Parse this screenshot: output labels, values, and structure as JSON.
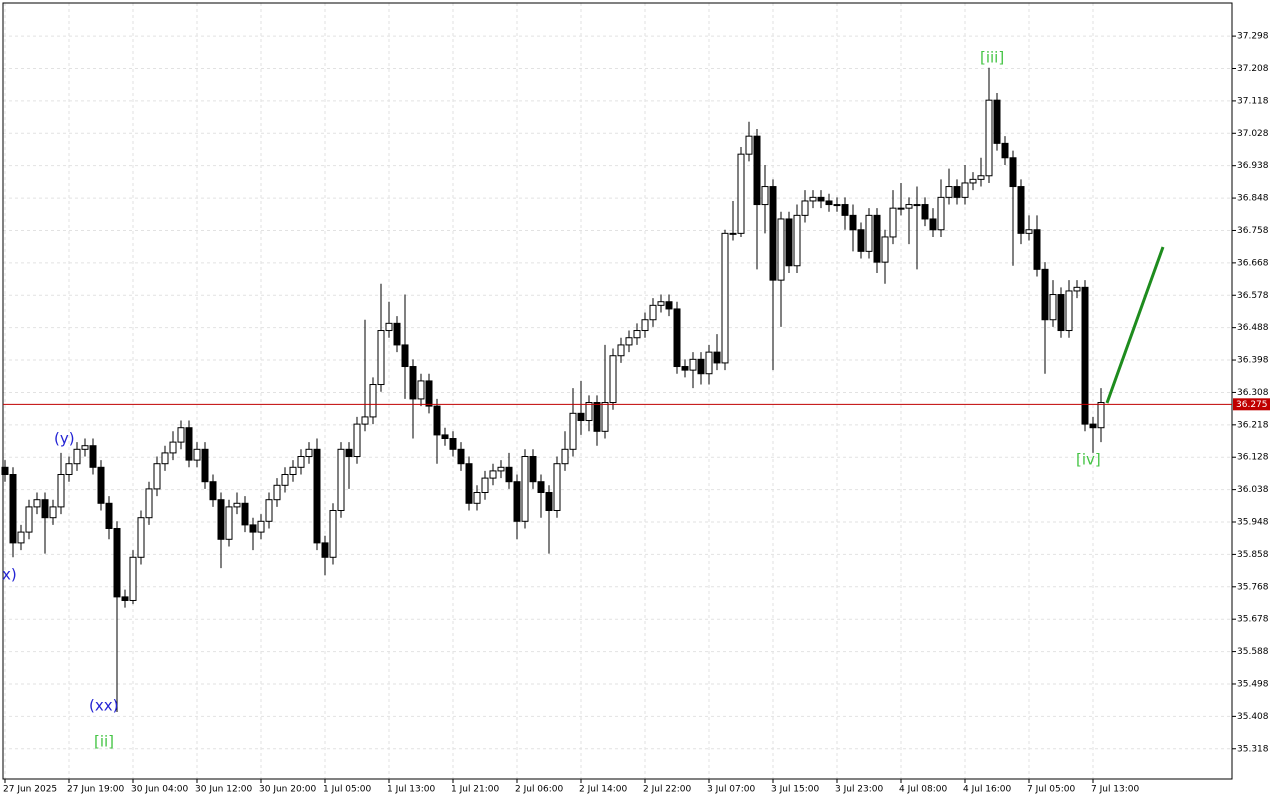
{
  "chart_data": {
    "type": "candlestick",
    "categories": [
      "27 Jun 2025",
      null,
      null,
      null,
      null,
      null,
      null,
      null,
      "27 Jun 19:00",
      null,
      null,
      null,
      null,
      null,
      null,
      null,
      "30 Jun 04:00",
      null,
      null,
      null,
      null,
      null,
      null,
      null,
      "30 Jun 12:00",
      null,
      null,
      null,
      null,
      null,
      null,
      null,
      "30 Jun 20:00",
      null,
      null,
      null,
      null,
      null,
      null,
      null,
      "1 Jul 05:00",
      null,
      null,
      null,
      null,
      null,
      null,
      null,
      "1 Jul 13:00",
      null,
      null,
      null,
      null,
      null,
      null,
      null,
      "1 Jul 21:00",
      null,
      null,
      null,
      null,
      null,
      null,
      null,
      "2 Jul 06:00",
      null,
      null,
      null,
      null,
      null,
      null,
      null,
      "2 Jul 14:00",
      null,
      null,
      null,
      null,
      null,
      null,
      null,
      "2 Jul 22:00",
      null,
      null,
      null,
      null,
      null,
      null,
      null,
      "3 Jul 07:00",
      null,
      null,
      null,
      null,
      null,
      null,
      null,
      "3 Jul 15:00",
      null,
      null,
      null,
      null,
      null,
      null,
      null,
      "3 Jul 23:00",
      null,
      null,
      null,
      null,
      null,
      null,
      null,
      "4 Jul 08:00",
      null,
      null,
      null,
      null,
      null,
      null,
      null,
      "4 Jul 16:00",
      null,
      null,
      null,
      null,
      null,
      null,
      null,
      "7 Jul 05:00",
      null,
      null,
      null,
      null,
      null,
      null,
      null,
      "7 Jul 13:00",
      null
    ],
    "open": [
      36.1,
      36.08,
      35.89,
      35.92,
      35.99,
      36.01,
      35.96,
      35.99,
      36.08,
      36.11,
      36.15,
      36.16,
      36.1,
      36.0,
      35.93,
      35.74,
      35.73,
      35.85,
      35.96,
      36.04,
      36.11,
      36.14,
      36.17,
      36.21,
      36.12,
      36.15,
      36.06,
      36.01,
      35.9,
      35.99,
      36.0,
      35.94,
      35.92,
      35.95,
      36.01,
      36.05,
      36.08,
      36.1,
      36.13,
      36.15,
      35.89,
      35.85,
      35.98,
      36.15,
      36.13,
      36.22,
      36.24,
      36.33,
      36.48,
      36.5,
      36.44,
      36.38,
      36.29,
      36.34,
      36.27,
      36.19,
      36.18,
      36.15,
      36.11,
      36.0,
      36.03,
      36.07,
      36.09,
      36.1,
      36.06,
      35.95,
      36.13,
      36.06,
      36.03,
      35.98,
      36.11,
      36.15,
      36.25,
      36.23,
      36.28,
      36.2,
      36.28,
      36.41,
      36.44,
      36.46,
      36.48,
      36.51,
      36.55,
      36.56,
      36.54,
      36.38,
      36.37,
      36.4,
      36.36,
      36.42,
      36.39,
      36.75,
      36.75,
      36.97,
      37.02,
      36.83,
      36.88,
      36.62,
      36.79,
      36.66,
      36.8,
      36.84,
      36.85,
      36.84,
      36.83,
      36.83,
      36.8,
      36.76,
      36.7,
      36.8,
      36.67,
      36.74,
      36.82,
      36.82,
      36.83,
      36.83,
      36.79,
      36.76,
      36.85,
      36.88,
      36.85,
      36.89,
      36.9,
      36.91,
      37.12,
      37.0,
      36.96,
      36.88,
      36.75,
      36.76,
      36.65,
      36.51,
      36.58,
      36.48,
      36.59,
      36.6,
      36.22,
      36.21
    ],
    "high": [
      36.12,
      36.1,
      35.94,
      36.01,
      36.03,
      36.03,
      36.01,
      36.14,
      36.13,
      36.17,
      36.18,
      36.18,
      36.12,
      36.02,
      35.95,
      35.76,
      35.87,
      35.98,
      36.06,
      36.13,
      36.16,
      36.2,
      36.23,
      36.23,
      36.17,
      36.17,
      36.08,
      36.03,
      36.01,
      36.03,
      36.02,
      35.96,
      35.97,
      36.03,
      36.07,
      36.1,
      36.12,
      36.15,
      36.17,
      36.18,
      35.91,
      36.0,
      36.17,
      36.17,
      36.24,
      36.51,
      36.35,
      36.61,
      36.56,
      36.52,
      36.58,
      36.4,
      36.36,
      36.36,
      36.29,
      36.21,
      36.2,
      36.17,
      36.13,
      36.05,
      36.09,
      36.11,
      36.12,
      36.14,
      36.08,
      36.15,
      36.15,
      36.08,
      36.05,
      36.13,
      36.2,
      36.32,
      36.34,
      36.3,
      36.3,
      36.44,
      36.43,
      36.46,
      36.48,
      36.5,
      36.53,
      36.57,
      36.58,
      36.58,
      36.56,
      36.4,
      36.42,
      36.42,
      36.44,
      36.47,
      36.76,
      36.84,
      36.99,
      37.06,
      37.04,
      36.94,
      36.9,
      36.81,
      36.81,
      36.83,
      36.87,
      36.87,
      36.87,
      36.86,
      36.85,
      36.85,
      36.83,
      36.78,
      36.82,
      36.82,
      36.76,
      36.87,
      36.89,
      36.85,
      36.88,
      36.85,
      36.82,
      36.9,
      36.93,
      36.9,
      36.94,
      36.92,
      36.96,
      37.21,
      37.14,
      37.02,
      36.98,
      36.9,
      36.8,
      36.8,
      36.67,
      36.62,
      36.6,
      36.62,
      36.62,
      36.62,
      36.24,
      36.32
    ],
    "low": [
      36.06,
      35.85,
      35.87,
      35.9,
      35.97,
      35.86,
      35.94,
      35.97,
      36.06,
      36.09,
      36.13,
      36.08,
      35.98,
      35.9,
      35.42,
      35.71,
      35.72,
      35.83,
      35.94,
      36.02,
      36.09,
      36.12,
      36.15,
      36.1,
      36.1,
      36.04,
      35.99,
      35.82,
      35.88,
      35.97,
      35.92,
      35.87,
      35.9,
      35.93,
      35.99,
      36.03,
      36.06,
      36.08,
      36.11,
      35.87,
      35.8,
      35.83,
      35.96,
      36.04,
      36.11,
      36.2,
      36.22,
      36.31,
      36.46,
      36.42,
      36.29,
      36.18,
      36.27,
      36.25,
      36.11,
      36.16,
      36.13,
      36.09,
      35.98,
      35.98,
      36.01,
      36.05,
      36.07,
      36.04,
      35.9,
      35.93,
      36.04,
      35.96,
      35.86,
      35.96,
      36.09,
      36.13,
      36.19,
      36.2,
      36.16,
      36.18,
      36.26,
      36.39,
      36.42,
      36.44,
      36.46,
      36.49,
      36.53,
      36.52,
      36.36,
      36.35,
      36.32,
      36.33,
      36.33,
      36.37,
      36.37,
      36.73,
      36.74,
      36.95,
      36.65,
      36.75,
      36.37,
      36.49,
      36.64,
      36.64,
      36.78,
      36.82,
      36.82,
      36.81,
      36.81,
      36.76,
      36.7,
      36.68,
      36.68,
      36.64,
      36.61,
      36.72,
      36.8,
      36.72,
      36.65,
      36.77,
      36.74,
      36.74,
      36.83,
      36.83,
      36.83,
      36.87,
      36.88,
      36.89,
      36.98,
      36.94,
      36.66,
      36.72,
      36.73,
      36.63,
      36.36,
      36.49,
      36.46,
      36.46,
      36.57,
      36.2,
      36.14,
      36.17
    ],
    "close": [
      36.08,
      35.89,
      35.92,
      35.99,
      36.01,
      35.96,
      35.99,
      36.08,
      36.11,
      36.15,
      36.16,
      36.1,
      36.0,
      35.93,
      35.74,
      35.73,
      35.85,
      35.96,
      36.04,
      36.11,
      36.14,
      36.17,
      36.21,
      36.12,
      36.15,
      36.06,
      36.01,
      35.9,
      35.99,
      36.0,
      35.94,
      35.92,
      35.95,
      36.01,
      36.05,
      36.08,
      36.1,
      36.13,
      36.15,
      35.89,
      35.85,
      35.98,
      36.15,
      36.13,
      36.22,
      36.24,
      36.33,
      36.48,
      36.5,
      36.44,
      36.38,
      36.29,
      36.34,
      36.27,
      36.19,
      36.18,
      36.15,
      36.11,
      36.0,
      36.03,
      36.07,
      36.09,
      36.1,
      36.06,
      35.95,
      36.13,
      36.06,
      36.03,
      35.98,
      36.11,
      36.15,
      36.25,
      36.23,
      36.28,
      36.2,
      36.28,
      36.41,
      36.44,
      36.46,
      36.48,
      36.51,
      36.55,
      36.56,
      36.54,
      36.38,
      36.37,
      36.4,
      36.36,
      36.42,
      36.39,
      36.75,
      36.75,
      36.97,
      37.02,
      36.83,
      36.88,
      36.62,
      36.79,
      36.66,
      36.8,
      36.84,
      36.85,
      36.84,
      36.83,
      36.83,
      36.8,
      36.76,
      36.7,
      36.8,
      36.67,
      36.74,
      36.82,
      36.82,
      36.83,
      36.83,
      36.79,
      36.76,
      36.85,
      36.88,
      36.85,
      36.89,
      36.9,
      36.91,
      37.12,
      37.0,
      36.96,
      36.88,
      36.75,
      36.76,
      36.65,
      36.51,
      36.58,
      36.48,
      36.59,
      36.6,
      36.22,
      36.21,
      36.28
    ],
    "up_color": "#ffffff",
    "down_color": "#000000",
    "ylim": [
      35.234,
      37.39
    ],
    "yticks": [
      37.298,
      37.208,
      37.118,
      37.028,
      36.938,
      36.848,
      36.758,
      36.668,
      36.578,
      36.488,
      36.398,
      36.308,
      36.218,
      36.128,
      36.038,
      35.948,
      35.858,
      35.768,
      35.678,
      35.588,
      35.498,
      35.408,
      35.318
    ],
    "grid": true,
    "current_price": 36.275,
    "current_price_color": "#c00000",
    "annotations": [
      {
        "text": "x)",
        "color": "#2424d4"
      },
      {
        "text": "(y)",
        "color": "#2424d4"
      },
      {
        "text": "(xx)",
        "color": "#2424d4"
      },
      {
        "text": "[ii]",
        "color": "#44c444"
      },
      {
        "text": "[iii]",
        "color": "#44c444"
      },
      {
        "text": "[iv]",
        "color": "#44c444"
      }
    ]
  }
}
